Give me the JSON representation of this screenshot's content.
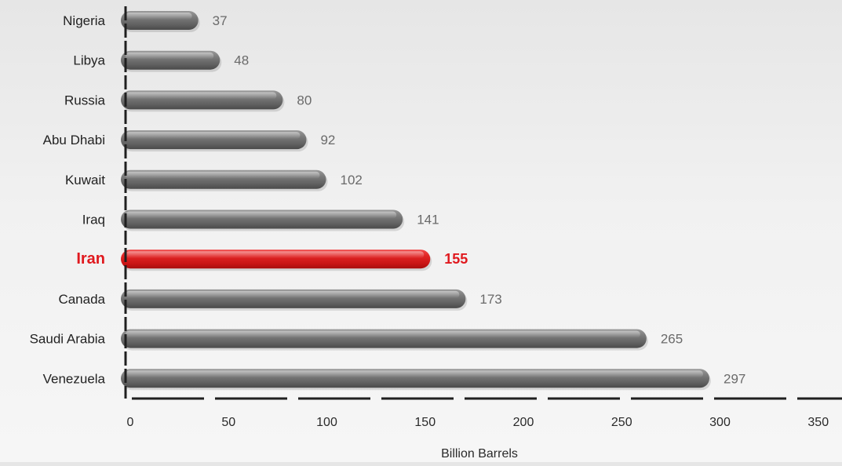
{
  "chart_data": {
    "type": "bar",
    "orientation": "horizontal",
    "categories": [
      "Nigeria",
      "Libya",
      "Russia",
      "Abu Dhabi",
      "Kuwait",
      "Iraq",
      "Iran",
      "Canada",
      "Saudi Arabia",
      "Venezuela"
    ],
    "values": [
      37,
      48,
      80,
      92,
      102,
      141,
      155,
      173,
      265,
      297
    ],
    "highlight": "Iran",
    "xlabel": "Billion Barrels",
    "xlim": [
      0,
      350
    ],
    "xticks": [
      0,
      50,
      100,
      150,
      200,
      250,
      300,
      350
    ],
    "grid": false,
    "colors": {
      "bar": "#6e6e6e",
      "highlight_bar": "#d91c1c",
      "highlight_text": "#e0191e",
      "label": "#222222",
      "value": "#6a6a6a",
      "axis": "#1f1f1f"
    }
  }
}
